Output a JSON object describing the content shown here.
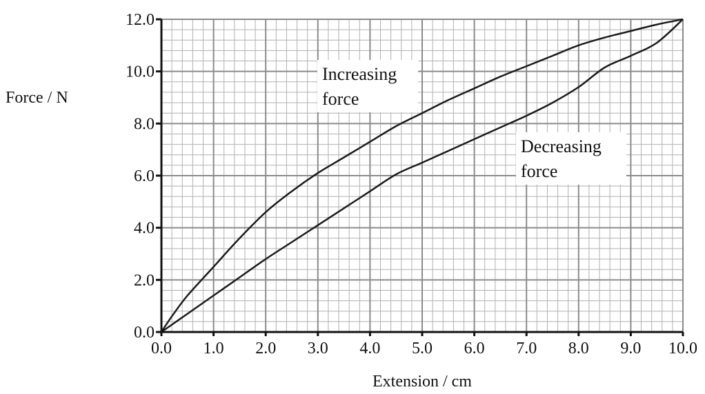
{
  "chart_data": {
    "type": "line",
    "title": "",
    "xlabel": "Extension / cm",
    "ylabel": "Force / N",
    "xlim": [
      0,
      10
    ],
    "ylim": [
      0,
      12
    ],
    "x_major_step": 1.0,
    "y_major_step": 2.0,
    "minor_divisions": 5,
    "x_tick_labels": [
      "0.0",
      "1.0",
      "2.0",
      "3.0",
      "4.0",
      "5.0",
      "6.0",
      "7.0",
      "8.0",
      "9.0",
      "10.0"
    ],
    "y_tick_labels": [
      "0.0",
      "2.0",
      "4.0",
      "6.0",
      "8.0",
      "10.0",
      "12.0"
    ],
    "grid": true,
    "series": [
      {
        "name": "Increasing force",
        "x": [
          0,
          0.2,
          0.5,
          1.0,
          1.5,
          2.0,
          2.5,
          3.0,
          3.5,
          4.0,
          4.5,
          5.0,
          5.5,
          6.0,
          6.5,
          7.0,
          7.5,
          8.0,
          8.5,
          9.0,
          9.5,
          10.0
        ],
        "y": [
          0,
          0.6,
          1.4,
          2.5,
          3.6,
          4.6,
          5.4,
          6.1,
          6.7,
          7.3,
          7.9,
          8.4,
          8.9,
          9.35,
          9.8,
          10.2,
          10.6,
          11.0,
          11.3,
          11.55,
          11.8,
          12.0
        ]
      },
      {
        "name": "Decreasing force",
        "x": [
          0,
          0.5,
          1.0,
          1.5,
          2.0,
          2.5,
          3.0,
          3.5,
          4.0,
          4.5,
          5.0,
          5.5,
          6.0,
          6.5,
          7.0,
          7.5,
          8.0,
          8.5,
          9.0,
          9.5,
          10.0
        ],
        "y": [
          0,
          0.7,
          1.4,
          2.1,
          2.8,
          3.45,
          4.1,
          4.75,
          5.4,
          6.05,
          6.5,
          6.95,
          7.4,
          7.85,
          8.3,
          8.8,
          9.4,
          10.15,
          10.6,
          11.1,
          12.0
        ]
      }
    ],
    "annotations": {
      "increasing": [
        "Increasing",
        "force"
      ],
      "decreasing": [
        "Decreasing",
        "force"
      ]
    }
  }
}
